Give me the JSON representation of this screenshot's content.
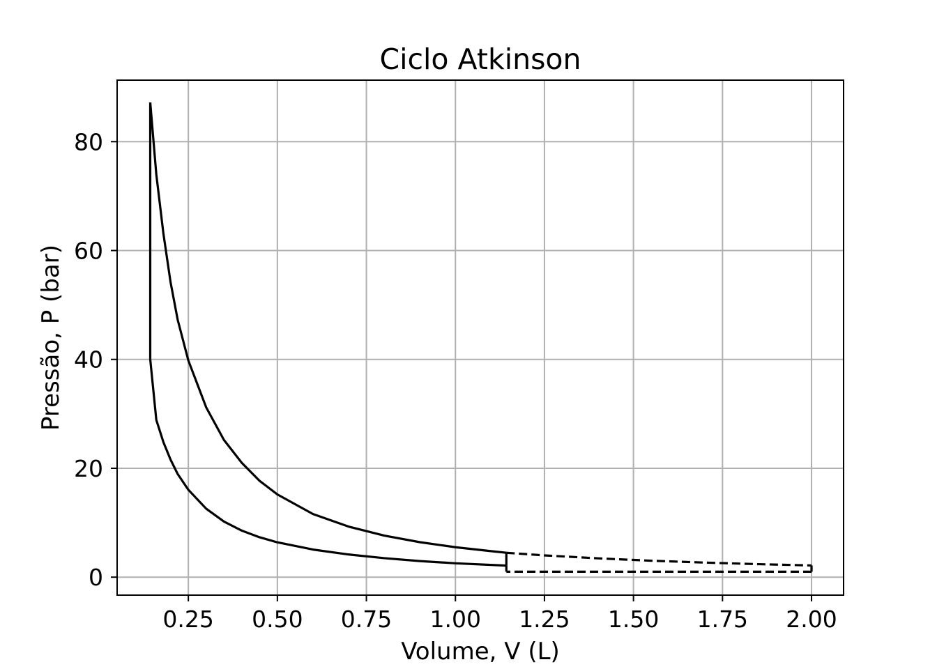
{
  "chart_data": {
    "type": "line",
    "title": "Ciclo Atkinson",
    "xlabel": "Volume, V (L)",
    "ylabel": "Pressão, P (bar)",
    "xlim": [
      0.05,
      2.09
    ],
    "ylim": [
      -3.3,
      91.3
    ],
    "xticks": [
      0.25,
      0.5,
      0.75,
      1.0,
      1.25,
      1.5,
      1.75,
      2.0
    ],
    "xtick_labels": [
      "0.25",
      "0.50",
      "0.75",
      "1.00",
      "1.25",
      "1.50",
      "1.75",
      "2.00"
    ],
    "yticks": [
      0,
      20,
      40,
      60,
      80
    ],
    "ytick_labels": [
      "0",
      "20",
      "40",
      "60",
      "80"
    ],
    "grid": true,
    "line_color": "#000000",
    "series": [
      {
        "style": "solid",
        "segments": [
          {
            "kind": "compression",
            "x": [
              1.143,
              1.0,
              0.9,
              0.8,
              0.7,
              0.6,
              0.5,
              0.45,
              0.4,
              0.35,
              0.3,
              0.25,
              0.22,
              0.2,
              0.18,
              0.16,
              0.143
            ],
            "y": [
              2.12,
              2.55,
              2.96,
              3.49,
              4.17,
              5.07,
              6.4,
              7.33,
              8.55,
              10.21,
              12.58,
              16.05,
              18.96,
              21.6,
              24.8,
              28.9,
              40.0
            ]
          },
          {
            "kind": "heat-addition",
            "x": [
              0.143,
              0.143
            ],
            "y": [
              40.0,
              87.2
            ]
          },
          {
            "kind": "expansion",
            "x": [
              0.143,
              0.16,
              0.18,
              0.2,
              0.22,
              0.25,
              0.3,
              0.35,
              0.4,
              0.45,
              0.5,
              0.6,
              0.7,
              0.8,
              0.9,
              1.0,
              1.1,
              1.143
            ],
            "y": [
              87.2,
              74.0,
              63.1,
              54.2,
              47.3,
              39.8,
              31.2,
              25.2,
              21.0,
              17.7,
              15.2,
              11.6,
              9.29,
              7.64,
              6.43,
              5.5,
              4.78,
              4.48
            ]
          },
          {
            "kind": "heat-rejection",
            "x": [
              1.143,
              1.143
            ],
            "y": [
              4.48,
              2.12
            ]
          }
        ]
      },
      {
        "style": "dashed",
        "segments": [
          {
            "kind": "expansion-extension",
            "x": [
              1.143,
              1.25,
              1.4,
              1.55,
              1.7,
              1.85,
              2.0
            ],
            "y": [
              4.48,
              4.0,
              3.46,
              3.02,
              2.68,
              2.39,
              2.15
            ]
          },
          {
            "kind": "heat-rejection-extended",
            "x": [
              2.0,
              2.0
            ],
            "y": [
              2.15,
              1.0
            ]
          },
          {
            "kind": "exhaust",
            "x": [
              2.0,
              1.143
            ],
            "y": [
              1.0,
              1.0
            ]
          },
          {
            "kind": "closing",
            "x": [
              1.143,
              1.143
            ],
            "y": [
              1.0,
              2.12
            ]
          }
        ]
      }
    ]
  }
}
